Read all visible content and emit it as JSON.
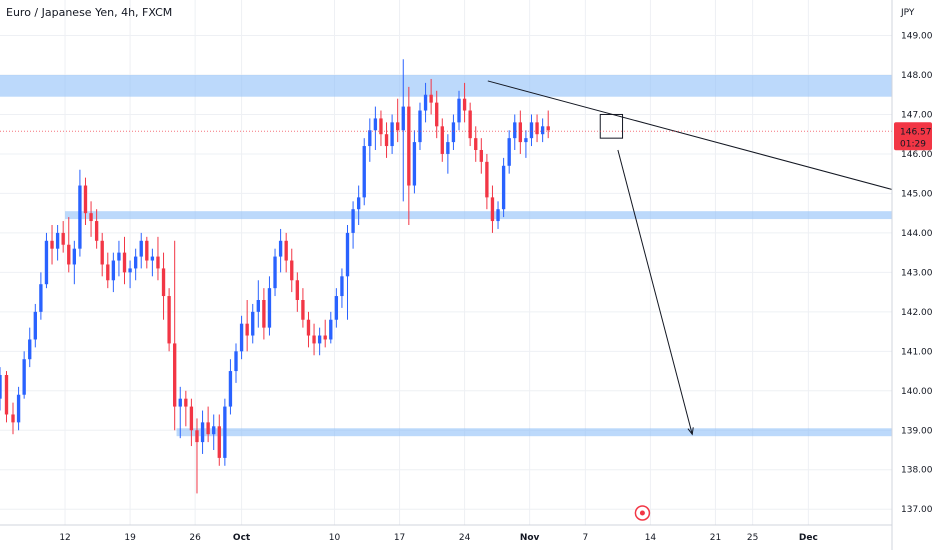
{
  "header": {
    "title": "Euro / Japanese Yen, 4h, FXCM"
  },
  "price_axis": {
    "currency": "JPY"
  },
  "last_price": {
    "value": "146.575",
    "countdown": "01:29",
    "color": "#f23645"
  },
  "colors": {
    "up": "#2962ff",
    "down": "#f23645",
    "zone": "#90bff9"
  },
  "chart_data": {
    "type": "candlestick",
    "title": "Euro / Japanese Yen, 4h, FXCM",
    "ylim": [
      136.6,
      149.9
    ],
    "yticks": [
      "137.000",
      "138.000",
      "139.000",
      "140.000",
      "141.000",
      "142.000",
      "143.000",
      "144.000",
      "145.000",
      "146.000",
      "147.000",
      "148.000",
      "149.000"
    ],
    "xticks": [
      {
        "label": "12",
        "day": 12
      },
      {
        "label": "19",
        "day": 19
      },
      {
        "label": "26",
        "day": 26
      },
      {
        "label": "Oct",
        "day": 31,
        "bold": true
      },
      {
        "label": "10",
        "day": 41
      },
      {
        "label": "17",
        "day": 48
      },
      {
        "label": "24",
        "day": 55
      },
      {
        "label": "Nov",
        "day": 62,
        "bold": true
      },
      {
        "label": "7",
        "day": 68
      },
      {
        "label": "14",
        "day": 75
      },
      {
        "label": "21",
        "day": 82
      },
      {
        "label": "25",
        "day": 86
      },
      {
        "label": "Dec",
        "day": 92,
        "bold": true
      }
    ],
    "xlim": [
      5,
      101
    ],
    "zones": [
      {
        "low": 147.45,
        "high": 148.0,
        "from_day": 5,
        "to_day": 101
      },
      {
        "low": 144.35,
        "high": 144.55,
        "from_day": 12,
        "to_day": 101
      },
      {
        "low": 138.85,
        "high": 139.05,
        "from_day": 24,
        "to_day": 101
      }
    ],
    "trendline": {
      "from": [
        57.5,
        147.85
      ],
      "to": [
        101,
        145.1
      ]
    },
    "projection": {
      "from": [
        71.5,
        146.1
      ],
      "to": [
        79.5,
        138.9
      ]
    },
    "box": {
      "from_day": 69.6,
      "to_day": 72.0,
      "low": 146.4,
      "high": 147.0
    },
    "candles": [
      [
        5.0,
        139.8,
        140.6,
        139.5,
        140.4
      ],
      [
        5.7,
        140.4,
        140.5,
        139.2,
        139.4
      ],
      [
        6.4,
        139.4,
        139.7,
        138.9,
        139.2
      ],
      [
        7.0,
        139.2,
        140.1,
        139.0,
        139.9
      ],
      [
        7.6,
        139.9,
        141.0,
        139.8,
        140.8
      ],
      [
        8.2,
        140.8,
        141.6,
        140.6,
        141.3
      ],
      [
        8.8,
        141.3,
        142.2,
        141.1,
        142.0
      ],
      [
        9.4,
        142.0,
        143.0,
        141.8,
        142.7
      ],
      [
        10.0,
        142.7,
        144.0,
        142.6,
        143.8
      ],
      [
        10.6,
        143.8,
        144.2,
        143.2,
        143.6
      ],
      [
        11.2,
        143.6,
        144.2,
        143.3,
        144.0
      ],
      [
        11.8,
        144.0,
        144.3,
        143.5,
        143.7
      ],
      [
        12.4,
        143.7,
        144.4,
        143.0,
        143.2
      ],
      [
        13.0,
        143.2,
        143.8,
        142.7,
        143.6
      ],
      [
        13.6,
        143.6,
        145.6,
        143.4,
        145.2
      ],
      [
        14.2,
        145.2,
        145.4,
        144.2,
        144.5
      ],
      [
        14.8,
        144.5,
        144.8,
        143.9,
        144.3
      ],
      [
        15.4,
        144.3,
        144.6,
        143.6,
        143.8
      ],
      [
        16.0,
        143.8,
        144.0,
        142.9,
        143.2
      ],
      [
        16.6,
        143.2,
        143.5,
        142.6,
        142.8
      ],
      [
        17.2,
        142.8,
        143.5,
        142.5,
        143.3
      ],
      [
        17.8,
        143.3,
        143.8,
        142.9,
        143.5
      ],
      [
        18.4,
        143.5,
        143.9,
        142.7,
        143.0
      ],
      [
        19.0,
        143.0,
        143.3,
        142.6,
        143.1
      ],
      [
        19.6,
        143.1,
        143.6,
        142.8,
        143.4
      ],
      [
        20.2,
        143.4,
        144.0,
        143.1,
        143.8
      ],
      [
        20.8,
        143.8,
        143.9,
        143.1,
        143.3
      ],
      [
        21.4,
        143.3,
        143.6,
        142.9,
        143.4
      ],
      [
        22.0,
        143.4,
        143.9,
        142.8,
        143.1
      ],
      [
        22.6,
        143.1,
        143.5,
        141.8,
        142.4
      ],
      [
        23.2,
        142.4,
        142.6,
        141.0,
        141.2
      ],
      [
        23.8,
        141.2,
        143.8,
        139.0,
        139.6
      ],
      [
        24.4,
        139.6,
        140.1,
        138.8,
        139.8
      ],
      [
        25.0,
        139.8,
        140.0,
        139.1,
        139.6
      ],
      [
        25.6,
        139.6,
        139.8,
        138.6,
        139.0
      ],
      [
        26.2,
        139.0,
        139.3,
        137.4,
        138.7
      ],
      [
        26.8,
        138.7,
        139.5,
        138.4,
        139.2
      ],
      [
        27.4,
        139.2,
        139.6,
        138.7,
        138.9
      ],
      [
        28.0,
        138.9,
        139.4,
        138.5,
        139.1
      ],
      [
        28.6,
        139.1,
        139.4,
        138.1,
        138.3
      ],
      [
        29.2,
        138.3,
        139.8,
        138.1,
        139.6
      ],
      [
        29.8,
        139.6,
        140.8,
        139.4,
        140.5
      ],
      [
        30.4,
        140.5,
        141.2,
        140.2,
        141.0
      ],
      [
        31.0,
        141.0,
        141.9,
        140.8,
        141.7
      ],
      [
        31.6,
        141.7,
        142.3,
        141.0,
        141.4
      ],
      [
        32.2,
        141.4,
        142.2,
        141.2,
        142.0
      ],
      [
        32.8,
        142.0,
        142.8,
        141.6,
        142.3
      ],
      [
        33.4,
        142.3,
        142.6,
        141.3,
        141.6
      ],
      [
        34.0,
        141.6,
        142.9,
        141.4,
        142.6
      ],
      [
        34.6,
        142.6,
        143.6,
        142.4,
        143.4
      ],
      [
        35.2,
        143.4,
        144.1,
        143.0,
        143.8
      ],
      [
        35.8,
        143.8,
        144.0,
        143.0,
        143.3
      ],
      [
        36.4,
        143.3,
        143.6,
        142.5,
        142.8
      ],
      [
        37.0,
        142.8,
        143.0,
        142.0,
        142.3
      ],
      [
        37.6,
        142.3,
        142.6,
        141.6,
        141.8
      ],
      [
        38.2,
        141.8,
        142.0,
        141.1,
        141.4
      ],
      [
        38.8,
        141.4,
        141.7,
        140.9,
        141.2
      ],
      [
        39.4,
        141.2,
        141.6,
        140.9,
        141.4
      ],
      [
        40.0,
        141.4,
        141.8,
        141.1,
        141.3
      ],
      [
        40.6,
        141.3,
        142.0,
        141.2,
        141.8
      ],
      [
        41.2,
        141.8,
        142.6,
        141.6,
        142.4
      ],
      [
        41.8,
        142.4,
        143.1,
        142.1,
        142.9
      ],
      [
        42.4,
        142.9,
        144.2,
        141.8,
        144.0
      ],
      [
        43.0,
        144.0,
        144.8,
        143.6,
        144.6
      ],
      [
        43.6,
        144.6,
        145.2,
        144.2,
        144.9
      ],
      [
        44.2,
        144.9,
        146.4,
        144.7,
        146.2
      ],
      [
        44.8,
        146.2,
        146.9,
        145.8,
        146.6
      ],
      [
        45.4,
        146.6,
        147.2,
        146.1,
        146.9
      ],
      [
        46.0,
        146.9,
        147.1,
        146.2,
        146.5
      ],
      [
        46.6,
        146.5,
        146.8,
        145.9,
        146.2
      ],
      [
        47.2,
        146.2,
        147.0,
        146.0,
        146.8
      ],
      [
        47.8,
        146.8,
        147.4,
        146.3,
        146.6
      ],
      [
        48.4,
        146.6,
        148.4,
        144.8,
        147.2
      ],
      [
        49.0,
        147.2,
        147.7,
        144.2,
        145.2
      ],
      [
        49.6,
        145.2,
        146.6,
        145.0,
        146.3
      ],
      [
        50.2,
        146.3,
        147.3,
        146.1,
        147.1
      ],
      [
        50.8,
        147.1,
        147.8,
        146.8,
        147.5
      ],
      [
        51.4,
        147.5,
        147.9,
        147.0,
        147.3
      ],
      [
        52.0,
        147.3,
        147.6,
        146.4,
        146.7
      ],
      [
        52.6,
        146.7,
        146.9,
        145.8,
        146.0
      ],
      [
        53.2,
        146.0,
        146.5,
        145.5,
        146.3
      ],
      [
        53.8,
        146.3,
        147.0,
        146.1,
        146.8
      ],
      [
        54.4,
        146.8,
        147.6,
        146.6,
        147.4
      ],
      [
        55.0,
        147.4,
        147.8,
        146.8,
        147.1
      ],
      [
        55.6,
        147.1,
        147.3,
        146.2,
        146.4
      ],
      [
        56.2,
        146.4,
        146.7,
        145.8,
        146.1
      ],
      [
        56.8,
        146.1,
        146.4,
        145.5,
        145.8
      ],
      [
        57.4,
        145.8,
        146.0,
        144.6,
        144.9
      ],
      [
        58.0,
        144.9,
        145.2,
        144.0,
        144.3
      ],
      [
        58.6,
        144.3,
        144.8,
        144.1,
        144.6
      ],
      [
        59.2,
        144.6,
        145.9,
        144.4,
        145.7
      ],
      [
        59.8,
        145.7,
        146.6,
        145.5,
        146.4
      ],
      [
        60.4,
        146.4,
        147.0,
        146.1,
        146.8
      ],
      [
        61.0,
        146.8,
        147.1,
        146.0,
        146.3
      ],
      [
        61.6,
        146.3,
        146.6,
        145.9,
        146.4
      ],
      [
        62.2,
        146.4,
        147.0,
        146.2,
        146.8
      ],
      [
        62.8,
        146.8,
        147.0,
        146.3,
        146.5
      ],
      [
        63.4,
        146.5,
        146.9,
        146.3,
        146.7
      ],
      [
        64.0,
        146.7,
        147.1,
        146.4,
        146.6
      ]
    ]
  }
}
